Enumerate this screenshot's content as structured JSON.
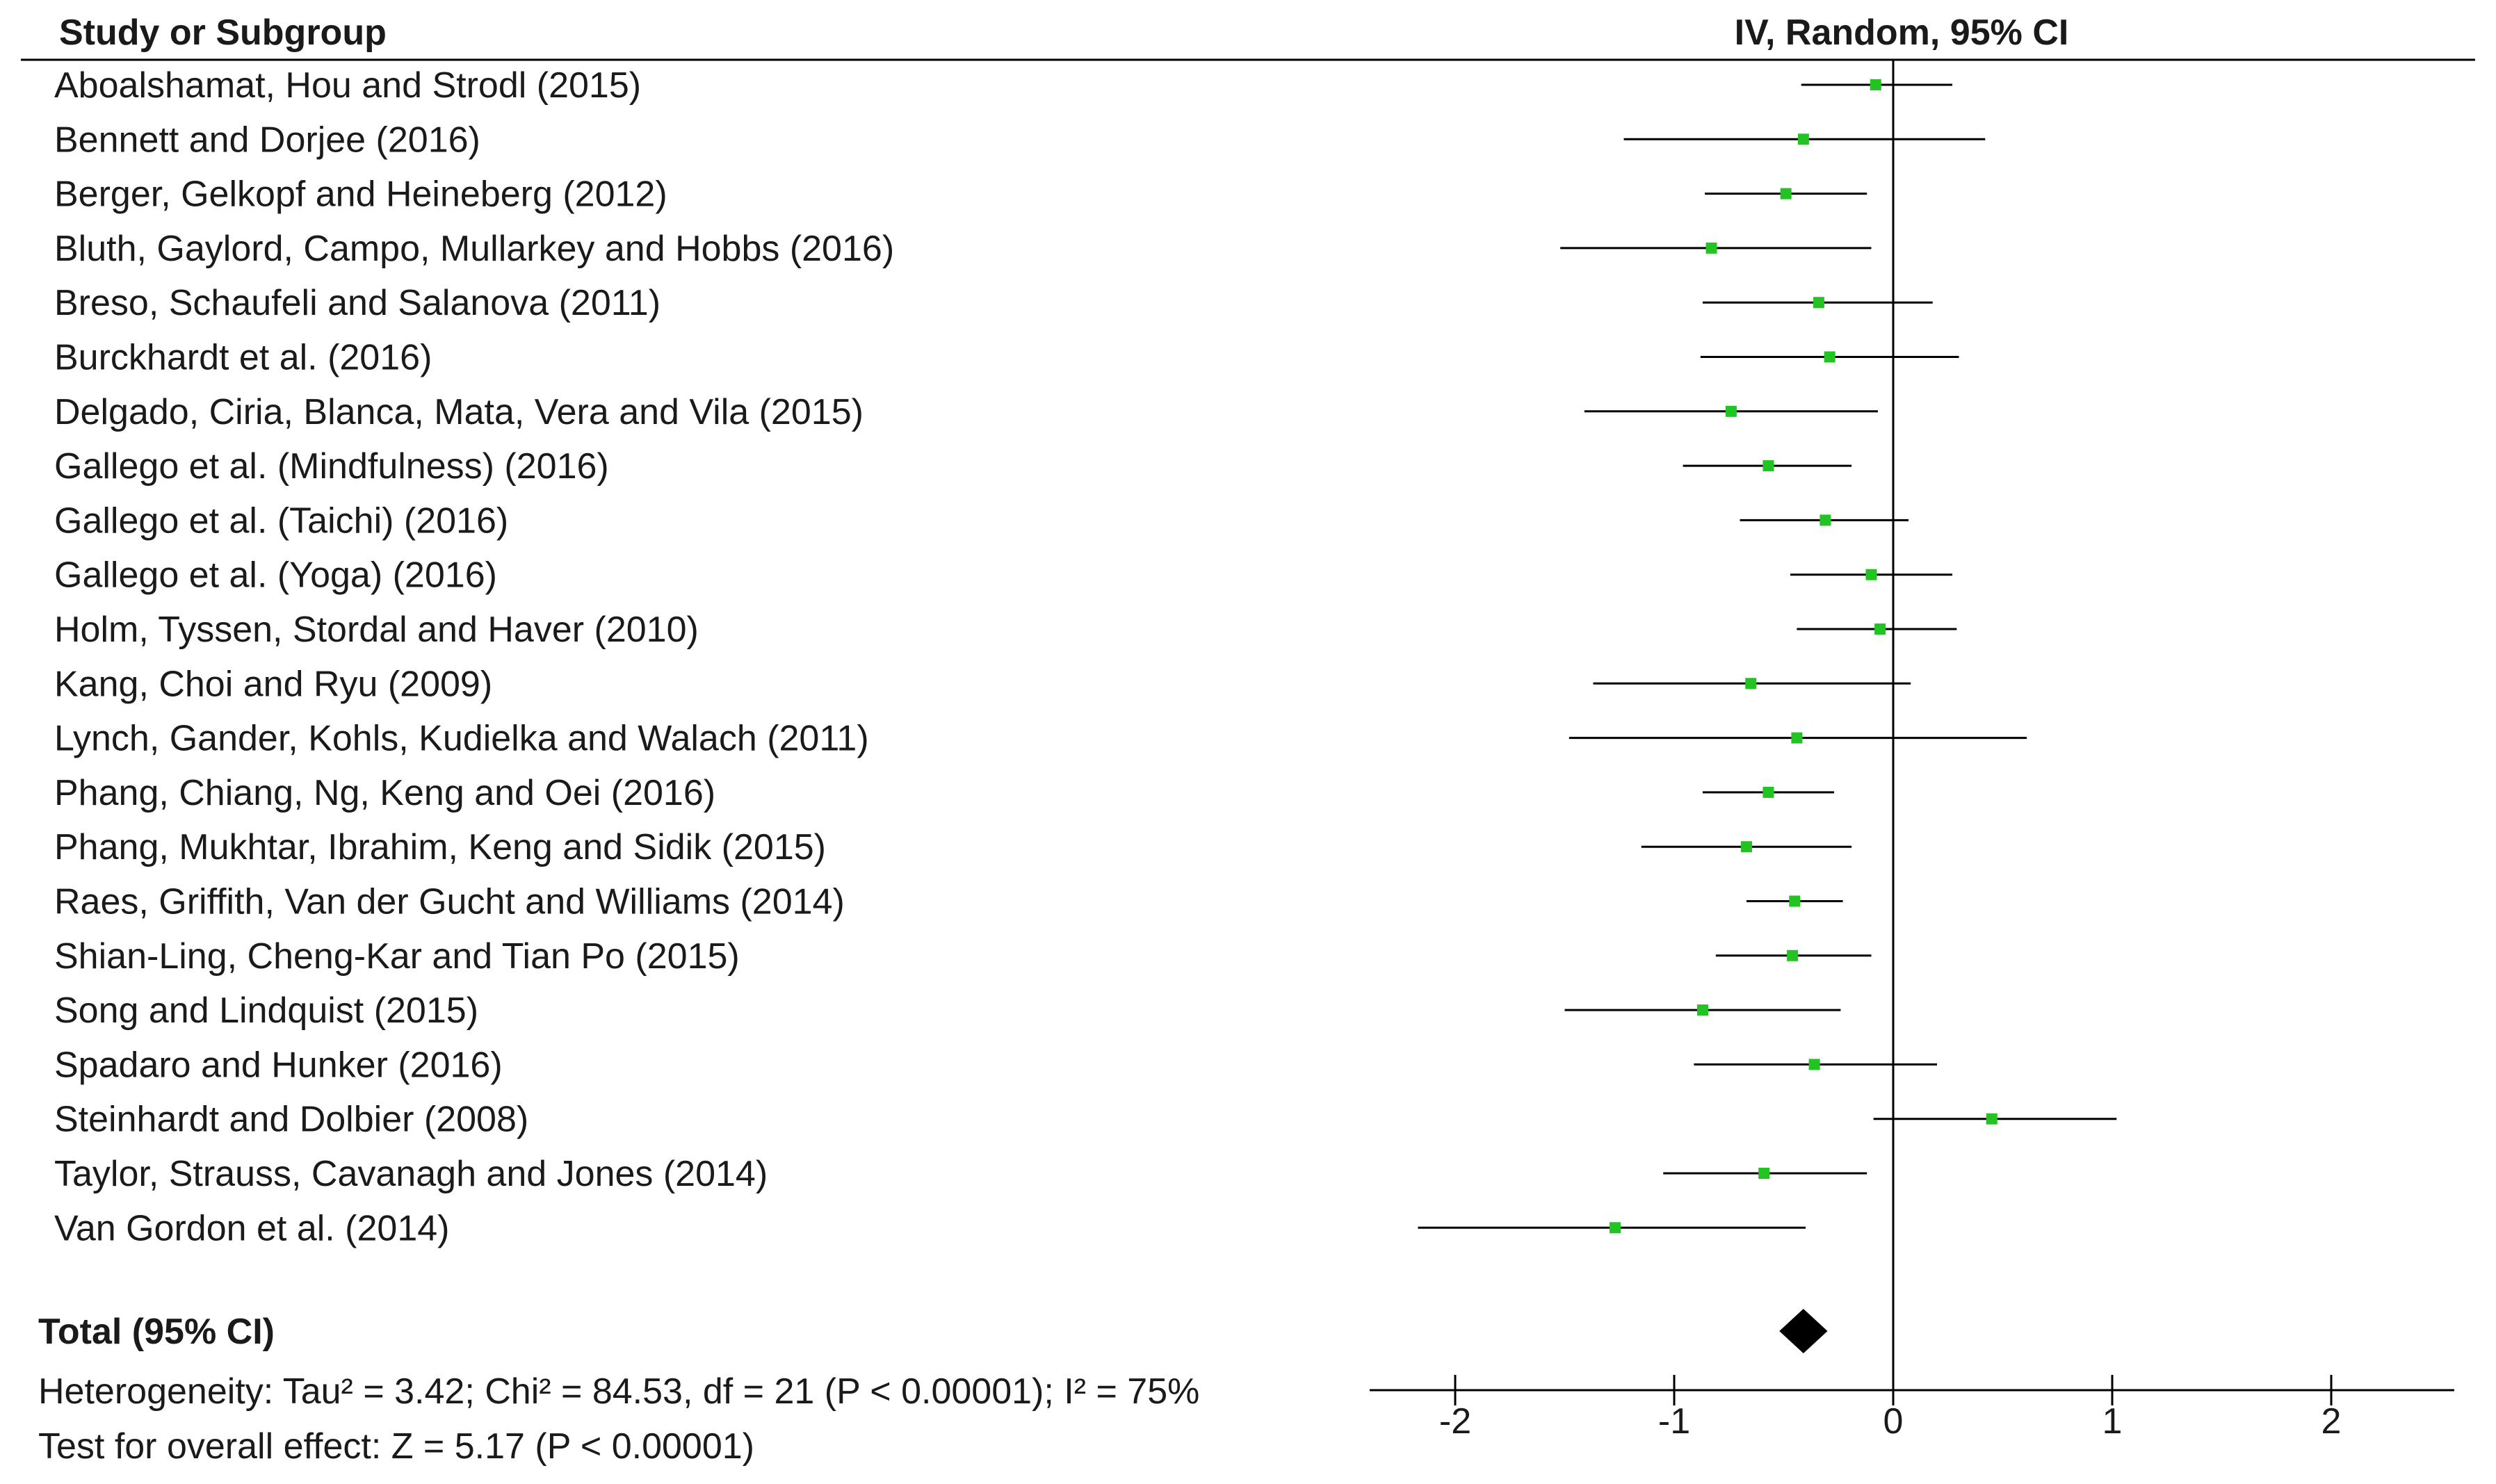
{
  "header": {
    "column_left": "Study or Subgroup",
    "column_right": "IV, Random, 95% CI"
  },
  "chart_data": {
    "type": "forest",
    "xlim": [
      -2.5,
      2.5
    ],
    "xticks": [
      -2,
      -1,
      0,
      1,
      2
    ],
    "xtick_labels": [
      "-2",
      "-1",
      "0",
      "1",
      "2"
    ],
    "null_line": 0,
    "marker_color": "#22c322",
    "studies": [
      {
        "label": "Aboalshamat, Hou and Strodl (2015)",
        "est": -0.08,
        "lo": -0.42,
        "hi": 0.27
      },
      {
        "label": "Bennett and Dorjee (2016)",
        "est": -0.41,
        "lo": -1.23,
        "hi": 0.42
      },
      {
        "label": "Berger, Gelkopf and Heineberg (2012)",
        "est": -0.49,
        "lo": -0.86,
        "hi": -0.12
      },
      {
        "label": "Bluth, Gaylord, Campo, Mullarkey and Hobbs (2016)",
        "est": -0.83,
        "lo": -1.52,
        "hi": -0.1
      },
      {
        "label": "Breso, Schaufeli and Salanova (2011)",
        "est": -0.34,
        "lo": -0.87,
        "hi": 0.18
      },
      {
        "label": "Burckhardt et al. (2016)",
        "est": -0.29,
        "lo": -0.88,
        "hi": 0.3
      },
      {
        "label": "Delgado, Ciria, Blanca, Mata, Vera and Vila (2015)",
        "est": -0.74,
        "lo": -1.41,
        "hi": -0.07
      },
      {
        "label": "Gallego et al. (Mindfulness) (2016)",
        "est": -0.57,
        "lo": -0.96,
        "hi": -0.19
      },
      {
        "label": "Gallego et al. (Taichi) (2016)",
        "est": -0.31,
        "lo": -0.7,
        "hi": 0.07
      },
      {
        "label": "Gallego et al. (Yoga) (2016)",
        "est": -0.1,
        "lo": -0.47,
        "hi": 0.27
      },
      {
        "label": "Holm, Tyssen, Stordal and Haver (2010)",
        "est": -0.06,
        "lo": -0.44,
        "hi": 0.29
      },
      {
        "label": "Kang, Choi and Ryu (2009)",
        "est": -0.65,
        "lo": -1.37,
        "hi": 0.08
      },
      {
        "label": "Lynch, Gander, Kohls, Kudielka and Walach (2011)",
        "est": -0.44,
        "lo": -1.48,
        "hi": 0.61
      },
      {
        "label": "Phang, Chiang, Ng, Keng and Oei (2016)",
        "est": -0.57,
        "lo": -0.87,
        "hi": -0.27
      },
      {
        "label": "Phang, Mukhtar, Ibrahim, Keng and Sidik (2015)",
        "est": -0.67,
        "lo": -1.15,
        "hi": -0.19
      },
      {
        "label": "Raes, Griffith, Van der Gucht and Williams (2014)",
        "est": -0.45,
        "lo": -0.67,
        "hi": -0.23
      },
      {
        "label": "Shian-Ling, Cheng-Kar and Tian Po (2015)",
        "est": -0.46,
        "lo": -0.81,
        "hi": -0.1
      },
      {
        "label": "Song and Lindquist (2015)",
        "est": -0.87,
        "lo": -1.5,
        "hi": -0.24
      },
      {
        "label": "Spadaro and Hunker (2016)",
        "est": -0.36,
        "lo": -0.91,
        "hi": 0.2
      },
      {
        "label": "Steinhardt and Dolbier (2008)",
        "est": 0.45,
        "lo": -0.09,
        "hi": 1.02
      },
      {
        "label": "Taylor, Strauss, Cavanagh and Jones (2014)",
        "est": -0.59,
        "lo": -1.05,
        "hi": -0.12
      },
      {
        "label": "Van Gordon et al. (2014)",
        "est": -1.27,
        "lo": -2.17,
        "hi": -0.4
      }
    ],
    "total": {
      "label": "Total (95% CI)",
      "est": -0.41,
      "lo": -0.52,
      "hi": -0.3
    },
    "heterogeneity": "Heterogeneity: Tau² = 3.42; Chi² = 84.53, df = 21 (P < 0.00001); I² = 75%",
    "overall_effect": "Test for overall effect: Z = 5.17 (P < 0.00001)"
  }
}
